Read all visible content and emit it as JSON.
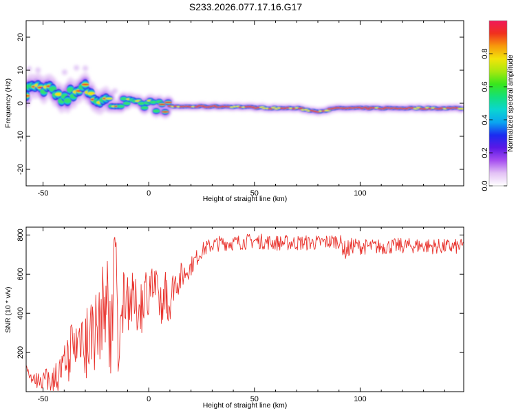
{
  "title": "S233.2026.077.17.16.G17",
  "chart_data": [
    {
      "type": "heatmap",
      "xlabel": "Height of straight line (km)",
      "ylabel": "Frequency (Hz)",
      "xlim": [
        -58,
        149
      ],
      "ylim": [
        -25,
        25
      ],
      "xticks": [
        -50,
        0,
        50,
        100
      ],
      "yticks": [
        -20,
        -10,
        0,
        10,
        20
      ],
      "xtick_labels": [
        "-50",
        "0",
        "50",
        "100"
      ],
      "ytick_labels": [
        "-20",
        "-10",
        "0",
        "10",
        "20"
      ],
      "ridge": {
        "x": [
          -58,
          -50,
          -45,
          -40,
          -35,
          -30,
          -25,
          -20,
          -15,
          -10,
          -5,
          0,
          5,
          10,
          20,
          40,
          60,
          70,
          80,
          85,
          90,
          100,
          110,
          130,
          149
        ],
        "freq": [
          4,
          5,
          3,
          2,
          3,
          5,
          2,
          0,
          0,
          0,
          -1,
          0,
          -1,
          -1,
          -1,
          -1,
          -1.5,
          -1.5,
          -2.5,
          -2,
          -1.5,
          -1.5,
          -1.5,
          -1.5,
          -1.5
        ]
      },
      "colorbar": {
        "label": "Normalized spectral amplitude",
        "range": [
          0,
          1
        ],
        "ticks": [
          0.0,
          0.2,
          0.4,
          0.6,
          0.8
        ],
        "tick_labels": [
          "0.0",
          "0.2",
          "0.4",
          "0.6",
          "0.8"
        ],
        "colormap": [
          "#ffffff",
          "#e3c2f5",
          "#a64ef0",
          "#5a18e6",
          "#1a2cf0",
          "#0aa6f0",
          "#0ad6d0",
          "#13e07a",
          "#38e61c",
          "#a8e80f",
          "#f2e40a",
          "#f79a0c",
          "#f0301e",
          "#f0185a"
        ]
      }
    },
    {
      "type": "line",
      "xlabel": "Height of straight line (km)",
      "ylabel": "SNR (10 * v/v)",
      "xlim": [
        -58,
        149
      ],
      "ylim": [
        0,
        840
      ],
      "xticks": [
        -50,
        0,
        50,
        100
      ],
      "yticks": [
        200,
        400,
        600,
        800
      ],
      "xtick_labels": [
        "-50",
        "0",
        "50",
        "100"
      ],
      "ytick_labels": [
        "200",
        "400",
        "600",
        "800"
      ],
      "color": "#e8302a",
      "x": [
        -58,
        -55,
        -50,
        -45,
        -40,
        -38,
        -35,
        -32,
        -30,
        -28,
        -26,
        -24,
        -22,
        -20,
        -18,
        -16,
        -15,
        -13,
        -10,
        -8,
        -5,
        -3,
        0,
        3,
        5,
        8,
        10,
        12,
        15,
        18,
        20,
        25,
        30,
        35,
        40,
        50,
        60,
        70,
        80,
        90,
        93,
        95,
        97,
        100,
        110,
        120,
        130,
        140,
        149
      ],
      "y": [
        130,
        60,
        70,
        80,
        120,
        250,
        220,
        300,
        330,
        250,
        380,
        300,
        420,
        480,
        420,
        780,
        350,
        500,
        520,
        460,
        420,
        480,
        560,
        520,
        460,
        540,
        460,
        560,
        580,
        620,
        640,
        720,
        750,
        760,
        760,
        770,
        760,
        760,
        760,
        770,
        720,
        730,
        750,
        740,
        740,
        745,
        745,
        740,
        740
      ],
      "noise_amplitude": [
        20,
        30,
        40,
        60,
        100,
        150,
        150,
        160,
        180,
        200,
        200,
        180,
        220,
        220,
        250,
        260,
        240,
        160,
        150,
        150,
        140,
        130,
        120,
        120,
        110,
        100,
        100,
        90,
        80,
        60,
        50,
        40,
        40,
        40,
        40,
        40,
        40,
        40,
        40,
        40,
        50,
        50,
        40,
        40,
        40,
        40,
        40,
        40,
        40
      ]
    }
  ]
}
